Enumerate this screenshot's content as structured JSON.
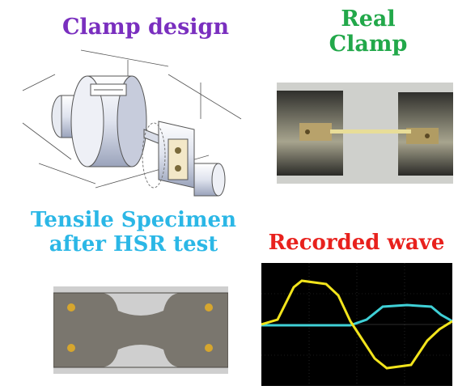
{
  "captions": {
    "clamp_design": "Clamp design",
    "real_clamp_line1": "Real",
    "real_clamp_line2": "Clamp",
    "tensile_line1": "Tensile Specimen",
    "tensile_line2": "after HSR test",
    "recorded_wave": "Recorded wave"
  },
  "colors": {
    "clamp_design": "#7a2fbf",
    "real_clamp": "#22a84a",
    "tensile": "#2bb7e6",
    "recorded_wave": "#e8211d",
    "wave_yellow": "#f2e41c",
    "wave_cyan": "#3fd0d6"
  }
}
